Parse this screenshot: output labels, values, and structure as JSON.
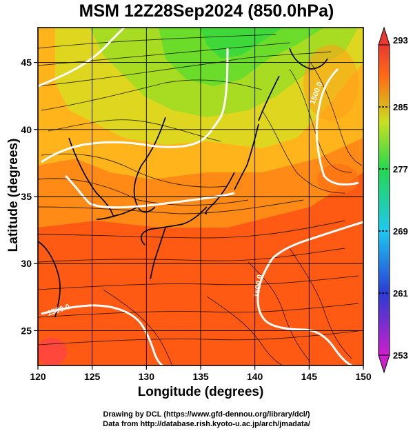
{
  "title": "MSM 12Z28Sep2024 (850.0hPa)",
  "x_axis": {
    "label": "Longitude (degrees)",
    "range": [
      120,
      150
    ],
    "ticks": [
      "120",
      "125",
      "130",
      "135",
      "140",
      "145",
      "150"
    ]
  },
  "y_axis": {
    "label": "Latitude (degrees)",
    "range": [
      22.4,
      47.6
    ],
    "ticks": [
      "25",
      "30",
      "35",
      "40",
      "45"
    ]
  },
  "colorbar": {
    "min": 253,
    "max": 293,
    "tick_labels": [
      "293",
      "285",
      "277",
      "269",
      "261",
      "253"
    ],
    "colors": [
      "#cc1fcc",
      "#2a3bd4",
      "#1ec9f0",
      "#24d84f",
      "#c8e021",
      "#ff6a14",
      "#e83a32"
    ]
  },
  "contour_labels": [
    "1500.0",
    "1500.0",
    "1500.0"
  ],
  "credits": {
    "line1": "Drawing by DCL (https://www.gfd-dennou.org/library/dcl/)",
    "line2": "Data from http://database.rish.kyoto-u.ac.jp/arch/jmadata/"
  }
}
